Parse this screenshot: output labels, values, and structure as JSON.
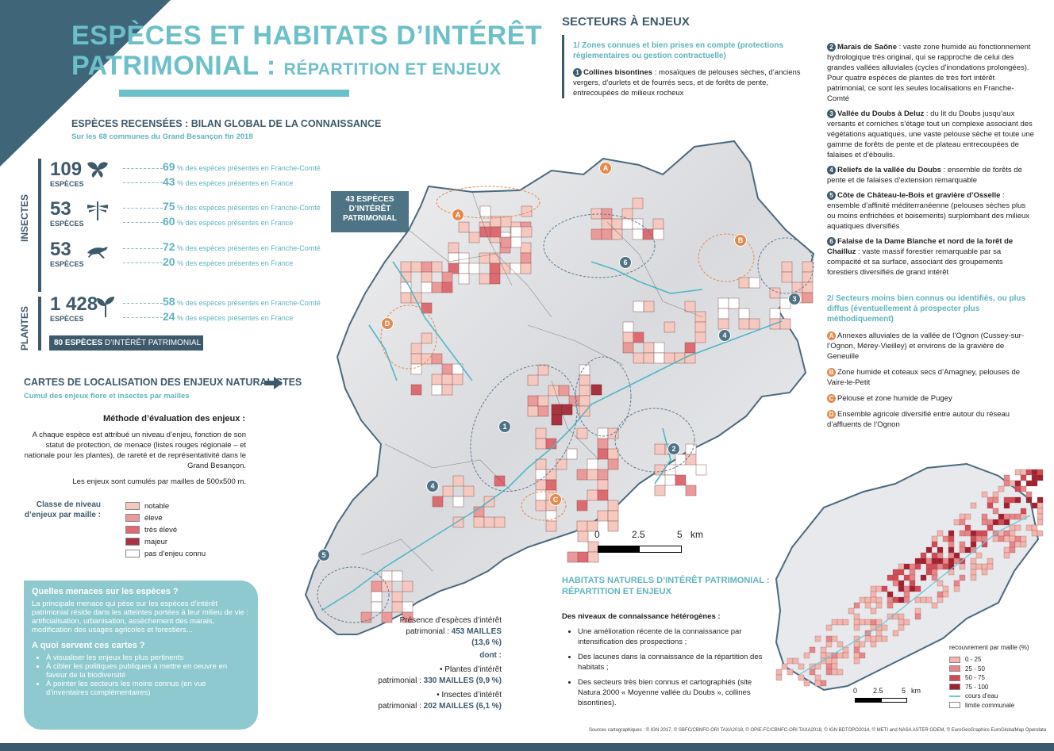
{
  "title": {
    "line1": "ESPÈCES ET HABITATS D’INTÉRÊT",
    "line2": "PATRIMONIAL :",
    "line2_sub": "RÉPARTITION ET ENJEUX"
  },
  "species": {
    "heading": "ESPÈCES RECENSÉES  : BILAN GLOBAL DE LA CONNAISSANCE",
    "subheading": "Sur les 68 communes du Grand Besançon fin 2018",
    "insects_label": "INSECTES",
    "plants_label": "PLANTES",
    "groups": [
      {
        "count": "109",
        "unit": "ESPÈCES",
        "icon": "butterfly-icon",
        "fc_pct": "69",
        "fr_pct": "43"
      },
      {
        "count": "53",
        "unit": "ESPÈCES",
        "icon": "dragonfly-icon",
        "fc_pct": "75",
        "fr_pct": "60"
      },
      {
        "count": "53",
        "unit": "ESPÈCES",
        "icon": "grasshopper-icon",
        "fc_pct": "72",
        "fr_pct": "20"
      },
      {
        "count": "1 428",
        "unit": "ESPÈCES",
        "icon": "plant-icon",
        "fc_pct": "58",
        "fr_pct": "24"
      }
    ],
    "fc_text": "des espèces présentes en Franche-Comté",
    "fr_text": "des espèces présentes en France",
    "pct_sign": "%",
    "box_43": "43 ESPÈCES D’INTÉRÊT PATRIMONIAL",
    "box_80_bold": "80 ESPÈCES",
    "box_80_rest": " D’INTÉRÊT PATRIMONIAL"
  },
  "cartes": {
    "heading": "CARTES DE LOCALISATION DES ENJEUX NATURALISTES",
    "subheading": "Cumul des enjeux flore et insectes par mailles",
    "method_title": "Méthode d’évaluation des enjeux :",
    "method_text": "A chaque espèce est attribué un niveau d’enjeu, fonction de son statut de protection, de menace (listes rouges régionale – et nationale pour les plantes), de rareté et de représentativité dans le Grand Besançon.",
    "method_text2": "Les enjeux sont cumulés par mailles de 500x500 m.",
    "legend_title": "Classe de niveau d’enjeux par maille :",
    "legend": [
      {
        "label": "notable",
        "color": "#f6c9c0"
      },
      {
        "label": "élevé",
        "color": "#ea9a98"
      },
      {
        "label": "très élevé",
        "color": "#de6a72"
      },
      {
        "label": "majeur",
        "color": "#a8323f"
      },
      {
        "label": "pas d’enjeu connu",
        "color": "#ffffff"
      }
    ]
  },
  "threats": {
    "q1": "Quelles menaces sur les espèces ?",
    "t1": "La principale menace qui pèse sur les espèces d’intérêt patrimonial réside dans les atteintes portées à leur milieu de vie : artificialisation, urbanisation, assèchement des marais, modification des usages agricoles et forestiers...",
    "q2": "A quoi servent ces cartes ?",
    "items": [
      "À visualiser les enjeux les plus pertinents",
      "À cibler les politiques publiques à mettre en oeuvre en faveur de la biodiversité",
      "À pointer les secteurs les moins connus (en vue d’inventaires complémentaires)"
    ]
  },
  "presence": {
    "l1": "Présence d’espèces d’intérêt",
    "l2": "patrimonial : ",
    "v1": "453 MAILLES",
    "p1": "(13,6 %)",
    "dont": "dont :",
    "plants1": "Plantes d’intérêt",
    "plants2": "patrimonial : ",
    "v2": "330 MAILLES (9,9 %)",
    "ins1": "Insectes d’intérêt",
    "ins2": "patrimonial : ",
    "v3": "202 MAILLES (6,1 %)"
  },
  "scale": {
    "t0": "0",
    "t1": "2.5",
    "t2": "5",
    "unit": "km"
  },
  "secteurs": {
    "heading": "SECTEURS À ENJEUX",
    "sub1": "1/ Zones connues et bien prises en compte (protections réglementaires ou gestion contractuelle)",
    "items": [
      {
        "n": "1",
        "name": "Collines bisontines",
        "text": " : mosaïques de pelouses sèches, d’anciens vergers, d’ourlets et de fourrés secs, et de forêts de pente, entrecoupées de milieux rocheux"
      },
      {
        "n": "2",
        "name": "Marais de Saône",
        "text": " : vaste zone humide au fonctionnement hydrologique très original, qui se rapproche de celui des grandes vallées alluviales (cycles d’inondations prolongées). Pour quatre espèces de plantes de très fort intérêt patrimonial, ce sont les seules localisations en Franche-Comté"
      },
      {
        "n": "3",
        "name": "Vallée du Doubs à Deluz",
        "text": " : du lit du Doubs jusqu’aux versants et corniches s’étage tout un complexe associant des végétations aquatiques, une vaste pelouse sèche et toute une gamme de forêts de pente et de plateau entrecoupées de falaises et d’éboulis."
      },
      {
        "n": "4",
        "name": "Reliefs de la vallée du Doubs",
        "text": " : ensemble de forêts de pente et de falaises d’extension remarquable"
      },
      {
        "n": "5",
        "name": "Côte de Château-le-Bois et gravière d’Osselle",
        "text": " : ensemble d’affinité méditerranéenne (pelouses sèches plus ou moins enfrichées et boisements) surplombant des milieux aquatiques diversifiés"
      },
      {
        "n": "6",
        "name": "Falaise de la Dame Blanche et nord de la forêt de Chailluz",
        "text": " : vaste massif forestier remarquable par sa compacité et sa surface, associant des groupements forestiers diversifiés de grand intérêt"
      }
    ],
    "sub2": "2/ Secteurs moins bien connus ou identifiés, ou plus diffus (éventuellement à prospecter plus méthodiquement)",
    "lettered": [
      {
        "l": "A",
        "text": "Annexes alluviales de la vallée de l’Ognon (Cussey-sur-l’Ognon, Mérey-Vieilley) et environs de la gravière de Geneuille"
      },
      {
        "l": "B",
        "text": "Zone humide et coteaux secs d’Amagney, pelouses de Vaire-le-Petit"
      },
      {
        "l": "C",
        "text": "Pelouse et zone humide de Pugey"
      },
      {
        "l": "D",
        "text": "Ensemble agricole diversifié entre autour du réseau d’affluents de l’Ognon"
      }
    ]
  },
  "habitats": {
    "heading1": "HABITATS NATURELS D’INTÉRÊT PATRIMONIAL :",
    "heading2": "RÉPARTITION ET ENJEUX",
    "sub": "Des niveaux de connaissance hétérogènes :",
    "items": [
      "Une amélioration récente de la connaissance par intensification des prospections ;",
      "Des lacunes dans la connaissance de la répartition des habitats ;",
      "Des secteurs très bien connus et cartographiés (site Natura 2000 « Moyenne vallée du Doubs », collines bisontines)."
    ],
    "legend_title": "recouvrement par maille (%)",
    "legend": [
      {
        "label": "0 - 25",
        "color": "#f3b5ad"
      },
      {
        "label": "25 - 50",
        "color": "#e8868a"
      },
      {
        "label": "50 - 75",
        "color": "#d44a55"
      },
      {
        "label": "75 - 100",
        "color": "#a3202f"
      },
      {
        "label": "cours d’eau",
        "color": "#6cc8d4"
      },
      {
        "label": "limite communale",
        "color": "#ffffff"
      }
    ],
    "scale": {
      "t0": "0",
      "t1": "2.5",
      "t2": "5",
      "unit": "km"
    }
  },
  "sources": "Sources cartographiques : © IGN   2017, © SBFC/CBNFC-ORI   TAXA2018, © OPIE-FC/CBNFC-ORI   TAXA2018, © IGN   BDTOPO2014, © METI and NASA   ASTER GDEM, © EuroGeoGraphics   EuroGlobalMap Opendata"
}
